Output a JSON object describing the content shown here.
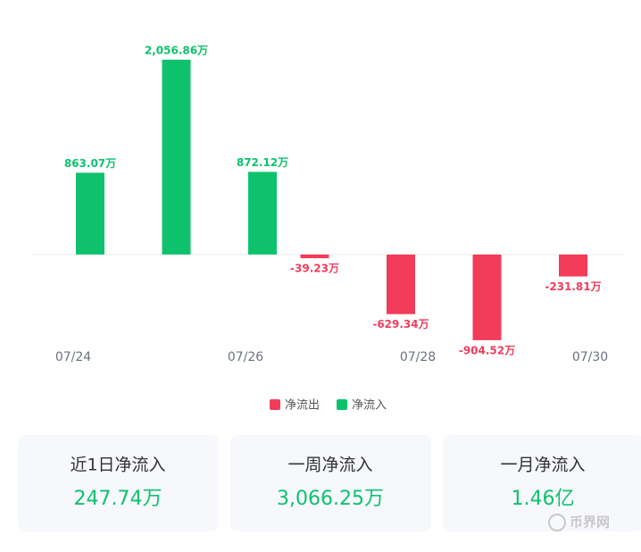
{
  "chart_data": {
    "type": "bar",
    "categories": [
      "07/24",
      null,
      "07/26",
      null,
      "07/28",
      null,
      "07/30"
    ],
    "series": [
      {
        "name": "净流出",
        "color": "#f23c5a",
        "values": [
          null,
          null,
          null,
          -39.23,
          -629.34,
          -904.52,
          -231.81
        ],
        "value_labels": [
          null,
          null,
          null,
          "-39.23万",
          "-629.34万",
          "-904.52万",
          "-231.81万"
        ]
      },
      {
        "name": "净流入",
        "color": "#0ec26d",
        "values": [
          863.07,
          2056.86,
          872.12,
          null,
          null,
          null,
          null
        ],
        "value_labels": [
          "863.07万",
          "2,056.86万",
          "872.12万",
          null,
          null,
          null,
          null
        ]
      }
    ],
    "ylim": [
      -1000,
      2300
    ]
  },
  "summary": [
    {
      "label": "近1日净流入",
      "value": "247.74万"
    },
    {
      "label": "一周净流入",
      "value": "3,066.25万"
    },
    {
      "label": "一月净流入",
      "value": "1.46亿"
    }
  ],
  "watermark": "币界网"
}
